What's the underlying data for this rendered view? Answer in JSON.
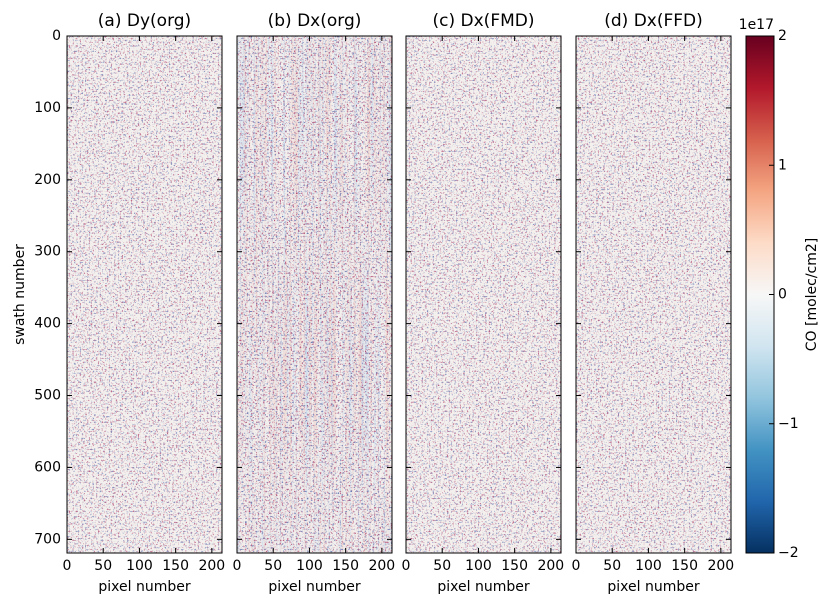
{
  "chart_data": {
    "type": "heatmap",
    "panels": [
      {
        "title": "(a) Dy(org)"
      },
      {
        "title": "(b) Dx(org)"
      },
      {
        "title": "(c) Dx(FMD)"
      },
      {
        "title": "(d) Dx(FFD)"
      }
    ],
    "xlabel": "pixel number",
    "ylabel": "swath number",
    "xlim": [
      0,
      214
    ],
    "xticks": [
      0,
      50,
      100,
      150,
      200
    ],
    "ylim": [
      0,
      719
    ],
    "yticks": [
      0,
      100,
      200,
      300,
      400,
      500,
      600,
      700
    ],
    "colorbar": {
      "label": "CO [molec/cm2]",
      "offset_label": "1e17",
      "lim": [
        -2,
        2
      ],
      "ticks": [
        {
          "value": -2,
          "label": "−2"
        },
        {
          "value": -1,
          "label": "−1"
        },
        0,
        1,
        2
      ],
      "colors": [
        "#053061",
        "#2166ac",
        "#4393c3",
        "#92c5de",
        "#d1e5f0",
        "#f7f7f7",
        "#fddbc7",
        "#f4a582",
        "#d6604d",
        "#b2182b",
        "#67001f"
      ]
    }
  }
}
